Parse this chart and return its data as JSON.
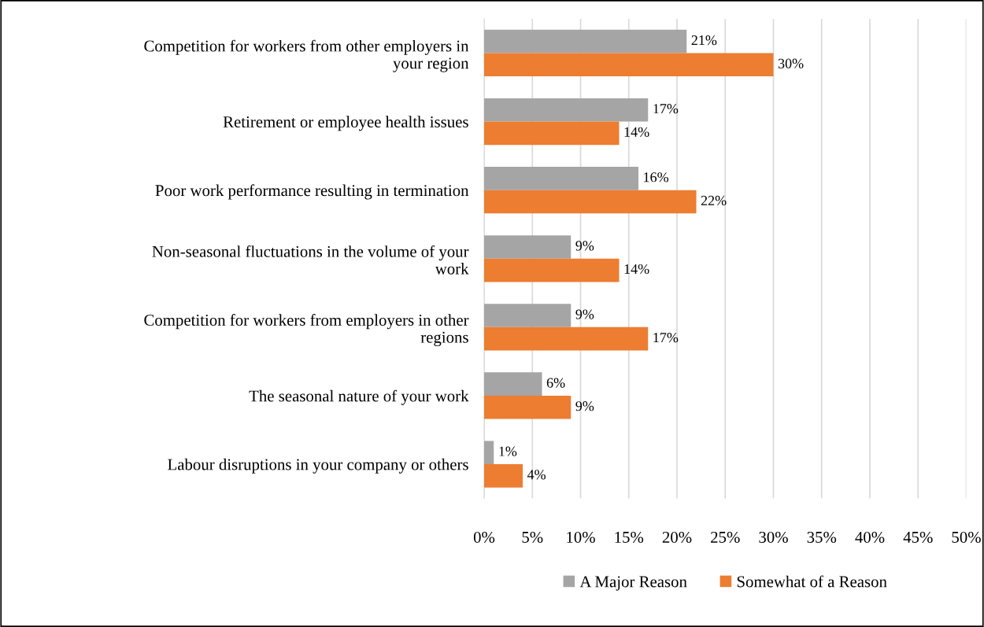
{
  "chart_data": {
    "type": "bar",
    "orientation": "horizontal",
    "categories": [
      "Competition for workers from other employers in your region",
      "Retirement or employee health issues",
      "Poor work performance resulting in termination",
      "Non-seasonal fluctuations in the volume of your work",
      "Competition for workers from employers in other regions",
      "The seasonal nature of your work",
      "Labour disruptions in your company or others"
    ],
    "series": [
      {
        "name": "A Major Reason",
        "color": "#a5a5a5",
        "values": [
          21,
          17,
          16,
          9,
          9,
          6,
          1
        ],
        "value_labels": [
          "21%",
          "17%",
          "16%",
          "9%",
          "9%",
          "6%",
          "1%"
        ]
      },
      {
        "name": "Somewhat of a Reason",
        "color": "#ed7d31",
        "values": [
          30,
          14,
          22,
          14,
          17,
          9,
          4
        ],
        "value_labels": [
          "30%",
          "14%",
          "22%",
          "14%",
          "17%",
          "9%",
          "4%"
        ]
      }
    ],
    "xlim": [
      0,
      50
    ],
    "xticks": [
      {
        "value": 0,
        "label": "0%"
      },
      {
        "value": 5,
        "label": "5%"
      },
      {
        "value": 10,
        "label": "10%"
      },
      {
        "value": 15,
        "label": "15%"
      },
      {
        "value": 20,
        "label": "20%"
      },
      {
        "value": 25,
        "label": "25%"
      },
      {
        "value": 30,
        "label": "30%"
      },
      {
        "value": 35,
        "label": "35%"
      },
      {
        "value": 40,
        "label": "40%"
      },
      {
        "value": 45,
        "label": "45%"
      },
      {
        "value": 50,
        "label": "50%"
      }
    ],
    "grid": "x",
    "legend": "bottom"
  }
}
